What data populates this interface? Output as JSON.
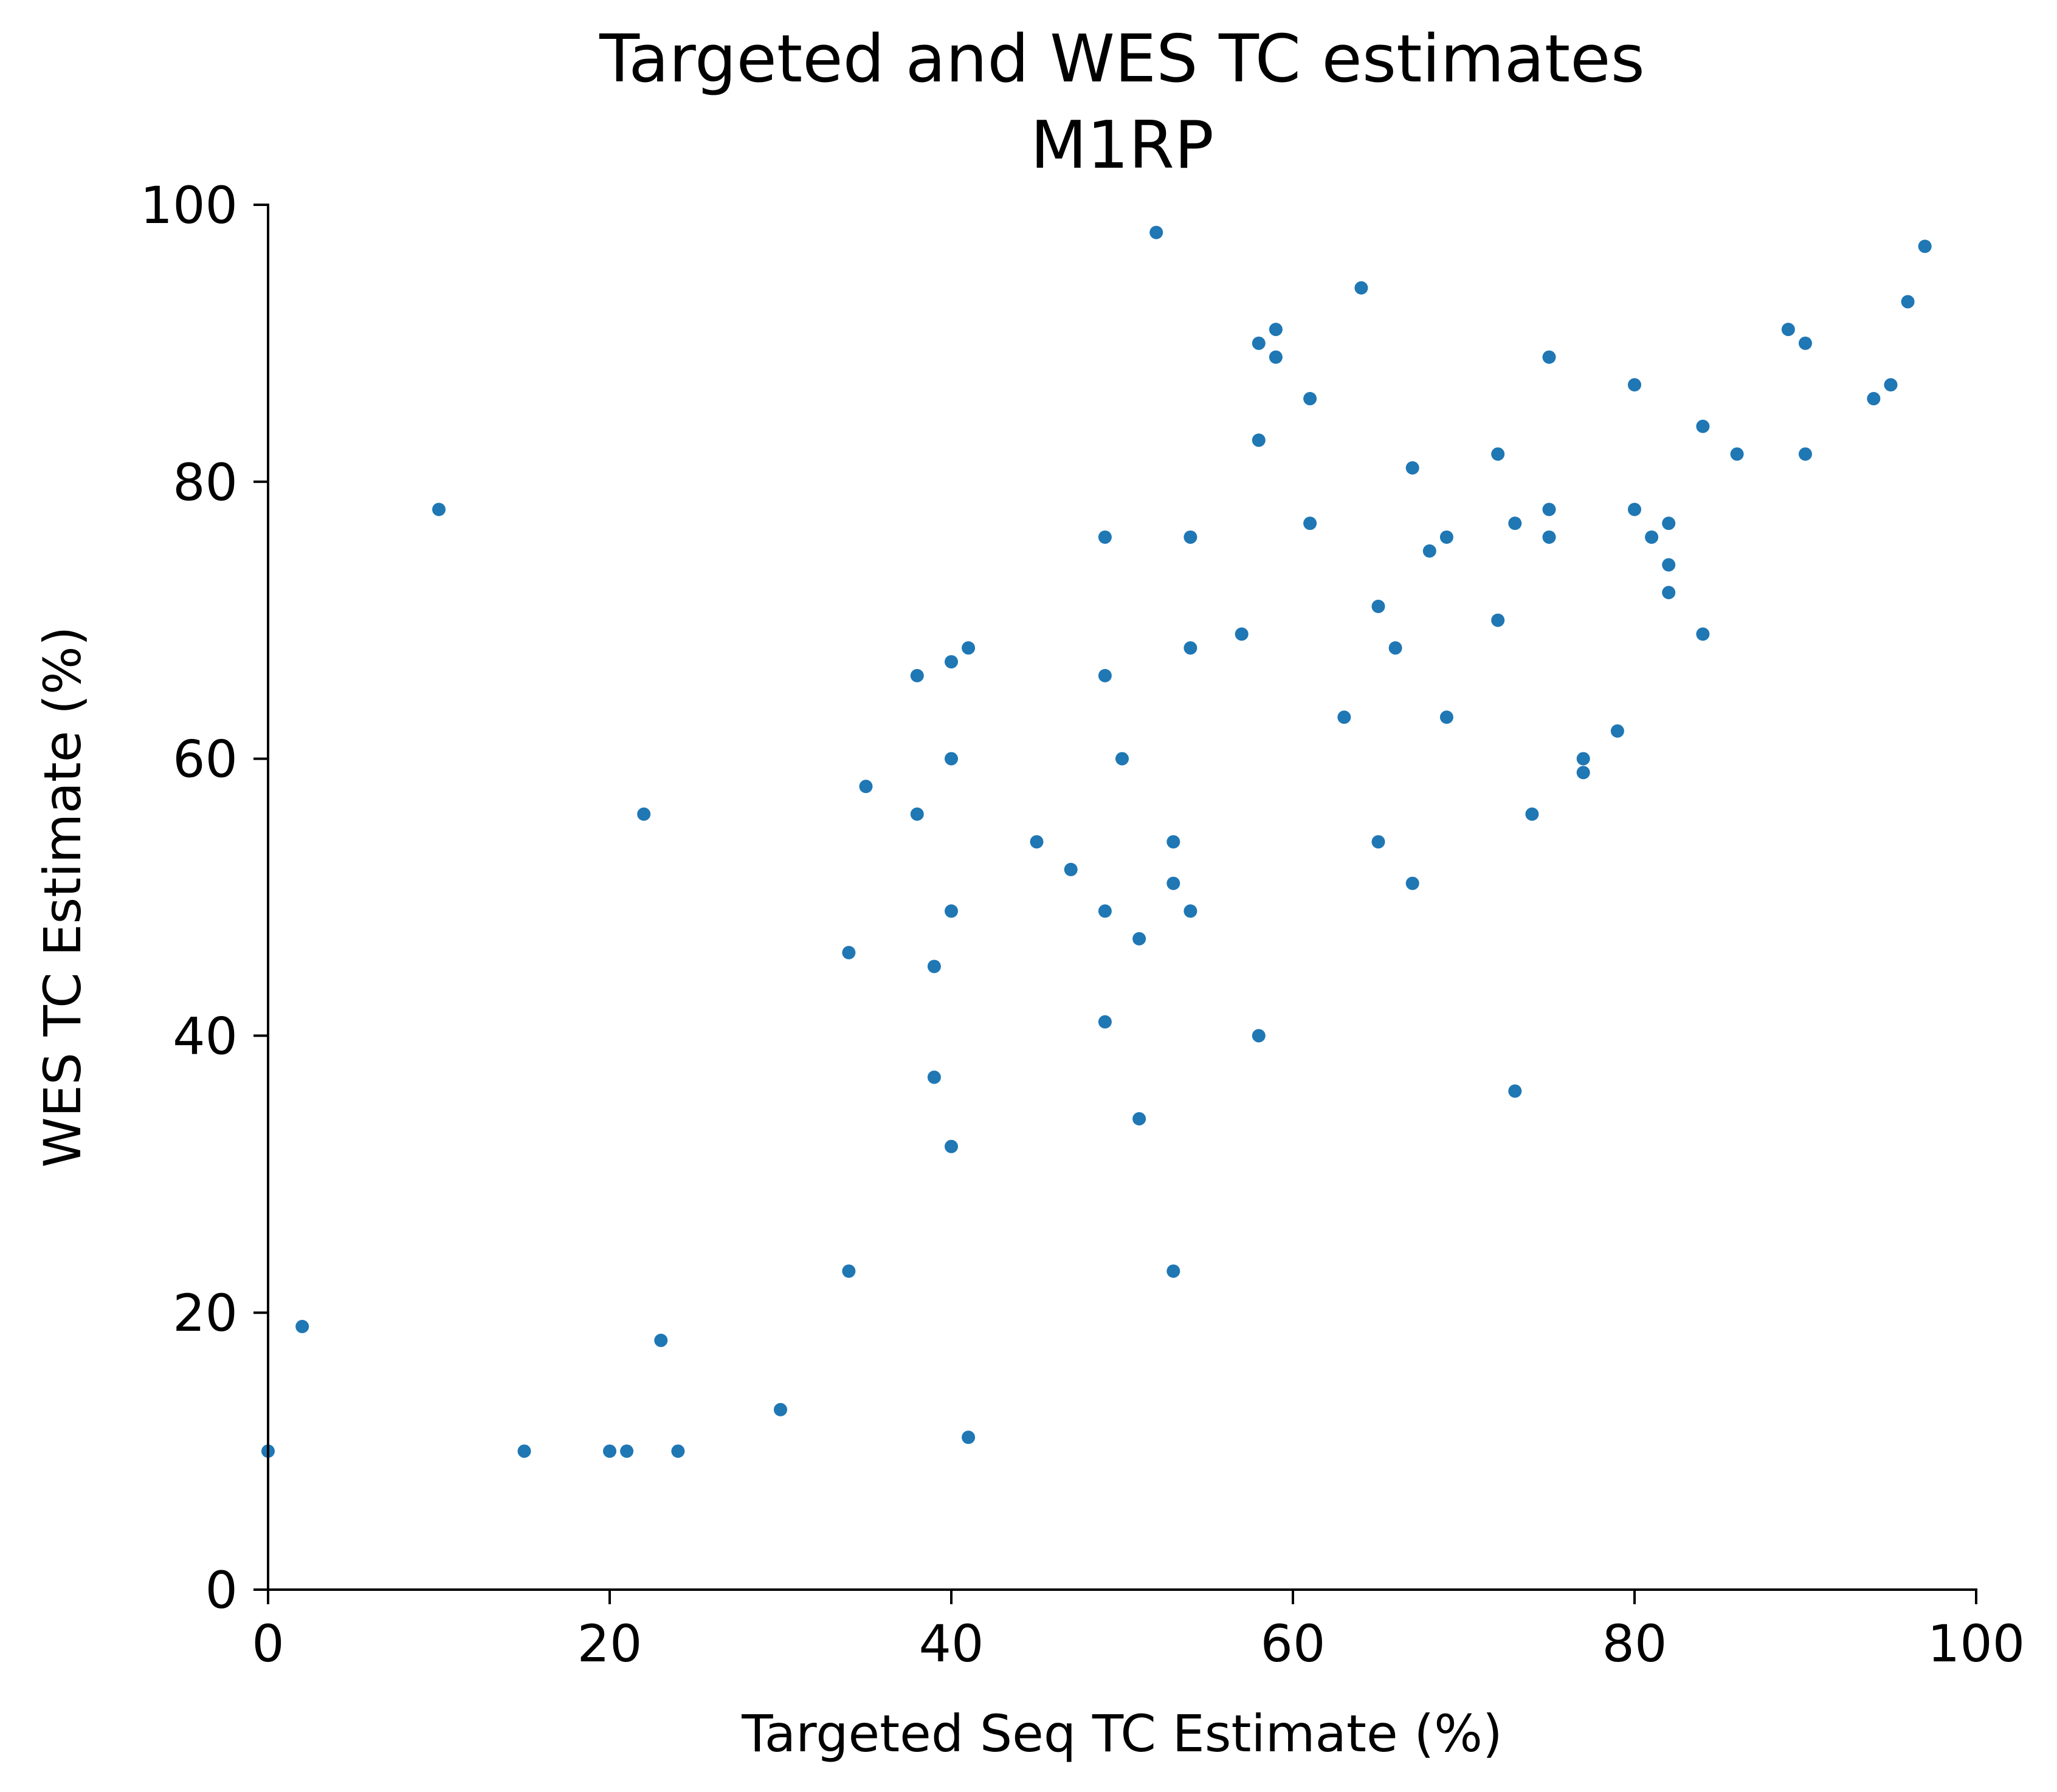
{
  "chart_data": {
    "type": "scatter",
    "title": "Targeted and WES TC estimates",
    "subtitle": "M1RP",
    "xlabel": "Targeted Seq TC Estimate (%)",
    "ylabel": "WES TC Estimate (%)",
    "xlim": [
      0,
      100
    ],
    "ylim": [
      0,
      100
    ],
    "xticks": [
      0,
      20,
      40,
      60,
      80,
      100
    ],
    "yticks": [
      0,
      20,
      40,
      60,
      80,
      100
    ],
    "grid": false,
    "legend": "none",
    "color": "#1f77b4",
    "points": [
      {
        "x": 0,
        "y": 10
      },
      {
        "x": 2,
        "y": 19
      },
      {
        "x": 10,
        "y": 78
      },
      {
        "x": 15,
        "y": 10
      },
      {
        "x": 20,
        "y": 10
      },
      {
        "x": 21,
        "y": 10
      },
      {
        "x": 22,
        "y": 56
      },
      {
        "x": 23,
        "y": 18
      },
      {
        "x": 24,
        "y": 10
      },
      {
        "x": 30,
        "y": 13
      },
      {
        "x": 34,
        "y": 46
      },
      {
        "x": 34,
        "y": 23
      },
      {
        "x": 35,
        "y": 58
      },
      {
        "x": 38,
        "y": 66
      },
      {
        "x": 38,
        "y": 56
      },
      {
        "x": 39,
        "y": 45
      },
      {
        "x": 39,
        "y": 37
      },
      {
        "x": 40,
        "y": 67
      },
      {
        "x": 40,
        "y": 60
      },
      {
        "x": 40,
        "y": 49
      },
      {
        "x": 40,
        "y": 32
      },
      {
        "x": 41,
        "y": 68
      },
      {
        "x": 41,
        "y": 11
      },
      {
        "x": 45,
        "y": 54
      },
      {
        "x": 47,
        "y": 52
      },
      {
        "x": 49,
        "y": 76
      },
      {
        "x": 49,
        "y": 66
      },
      {
        "x": 49,
        "y": 49
      },
      {
        "x": 49,
        "y": 41
      },
      {
        "x": 50,
        "y": 60
      },
      {
        "x": 51,
        "y": 47
      },
      {
        "x": 51,
        "y": 34
      },
      {
        "x": 52,
        "y": 98
      },
      {
        "x": 53,
        "y": 54
      },
      {
        "x": 53,
        "y": 51
      },
      {
        "x": 53,
        "y": 23
      },
      {
        "x": 54,
        "y": 76
      },
      {
        "x": 54,
        "y": 68
      },
      {
        "x": 54,
        "y": 49
      },
      {
        "x": 57,
        "y": 69
      },
      {
        "x": 58,
        "y": 90
      },
      {
        "x": 58,
        "y": 83
      },
      {
        "x": 58,
        "y": 40
      },
      {
        "x": 59,
        "y": 91
      },
      {
        "x": 59,
        "y": 89
      },
      {
        "x": 61,
        "y": 86
      },
      {
        "x": 61,
        "y": 77
      },
      {
        "x": 63,
        "y": 63
      },
      {
        "x": 64,
        "y": 94
      },
      {
        "x": 65,
        "y": 71
      },
      {
        "x": 65,
        "y": 54
      },
      {
        "x": 66,
        "y": 68
      },
      {
        "x": 67,
        "y": 81
      },
      {
        "x": 67,
        "y": 51
      },
      {
        "x": 68,
        "y": 75
      },
      {
        "x": 69,
        "y": 76
      },
      {
        "x": 69,
        "y": 63
      },
      {
        "x": 72,
        "y": 82
      },
      {
        "x": 72,
        "y": 70
      },
      {
        "x": 73,
        "y": 77
      },
      {
        "x": 73,
        "y": 36
      },
      {
        "x": 74,
        "y": 56
      },
      {
        "x": 75,
        "y": 89
      },
      {
        "x": 75,
        "y": 78
      },
      {
        "x": 75,
        "y": 76
      },
      {
        "x": 77,
        "y": 60
      },
      {
        "x": 77,
        "y": 59
      },
      {
        "x": 79,
        "y": 62
      },
      {
        "x": 80,
        "y": 87
      },
      {
        "x": 80,
        "y": 78
      },
      {
        "x": 81,
        "y": 76
      },
      {
        "x": 82,
        "y": 77
      },
      {
        "x": 82,
        "y": 74
      },
      {
        "x": 82,
        "y": 72
      },
      {
        "x": 84,
        "y": 84
      },
      {
        "x": 84,
        "y": 69
      },
      {
        "x": 86,
        "y": 82
      },
      {
        "x": 89,
        "y": 91
      },
      {
        "x": 90,
        "y": 90
      },
      {
        "x": 90,
        "y": 82
      },
      {
        "x": 94,
        "y": 86
      },
      {
        "x": 95,
        "y": 87
      },
      {
        "x": 96,
        "y": 93
      },
      {
        "x": 97,
        "y": 97
      }
    ]
  }
}
